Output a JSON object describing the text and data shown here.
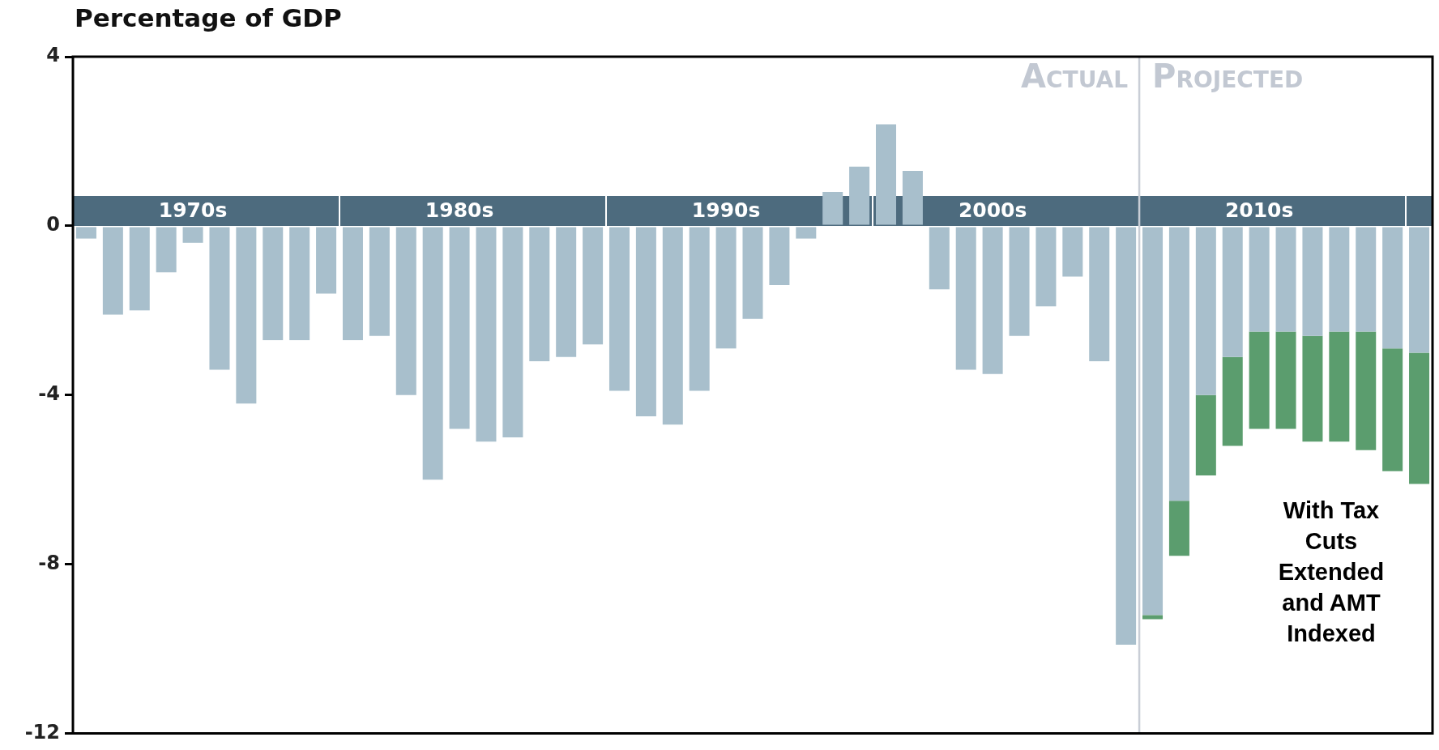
{
  "chart_data": {
    "type": "bar",
    "ylabel": "Percentage of GDP",
    "categories": [
      null,
      null,
      null,
      null,
      "1970s",
      null,
      null,
      null,
      null,
      null,
      null,
      null,
      null,
      null,
      "1980s",
      null,
      null,
      null,
      null,
      null,
      null,
      null,
      null,
      null,
      "1990s",
      null,
      null,
      null,
      null,
      null,
      null,
      null,
      null,
      null,
      "2000s",
      null,
      null,
      null,
      null,
      null,
      null,
      null,
      null,
      null,
      "2010s",
      null,
      null,
      null,
      null,
      null,
      null
    ],
    "ylim": [
      -12,
      4
    ],
    "yticks": [
      4,
      0,
      -4,
      -8,
      -12
    ],
    "stacked": true,
    "legend": false,
    "grid": false,
    "series": [
      {
        "color": "#a8bfcc",
        "values": [
          -0.3,
          -2.1,
          -2.0,
          -1.1,
          -0.4,
          -3.4,
          -4.2,
          -2.7,
          -2.7,
          -1.6,
          -2.7,
          -2.6,
          -4.0,
          -6.0,
          -4.8,
          -5.1,
          -5.0,
          -3.2,
          -3.1,
          -2.8,
          -3.9,
          -4.5,
          -4.7,
          -3.9,
          -2.9,
          -2.2,
          -1.4,
          -0.3,
          0.8,
          1.4,
          2.4,
          1.3,
          -1.5,
          -3.4,
          -3.5,
          -2.6,
          -1.9,
          -1.2,
          -3.2,
          -9.9,
          -9.2,
          -6.5,
          -4.0,
          -3.1,
          -2.5,
          -2.5,
          -2.6,
          -2.5,
          -2.5,
          -2.9,
          -3.0
        ]
      },
      {
        "name": "With Tax Cuts Extended and AMT Indexed",
        "color": "#5b9d6e",
        "values": [
          null,
          null,
          null,
          null,
          null,
          null,
          null,
          null,
          null,
          null,
          null,
          null,
          null,
          null,
          null,
          null,
          null,
          null,
          null,
          null,
          null,
          null,
          null,
          null,
          null,
          null,
          null,
          null,
          null,
          null,
          null,
          null,
          null,
          null,
          null,
          null,
          null,
          null,
          null,
          null,
          -0.1,
          -1.3,
          -1.9,
          -2.1,
          -2.3,
          -2.3,
          -2.5,
          -2.6,
          -2.8,
          -2.9,
          -3.1
        ]
      }
    ],
    "annotations": [
      "Actual",
      "Projected"
    ]
  }
}
